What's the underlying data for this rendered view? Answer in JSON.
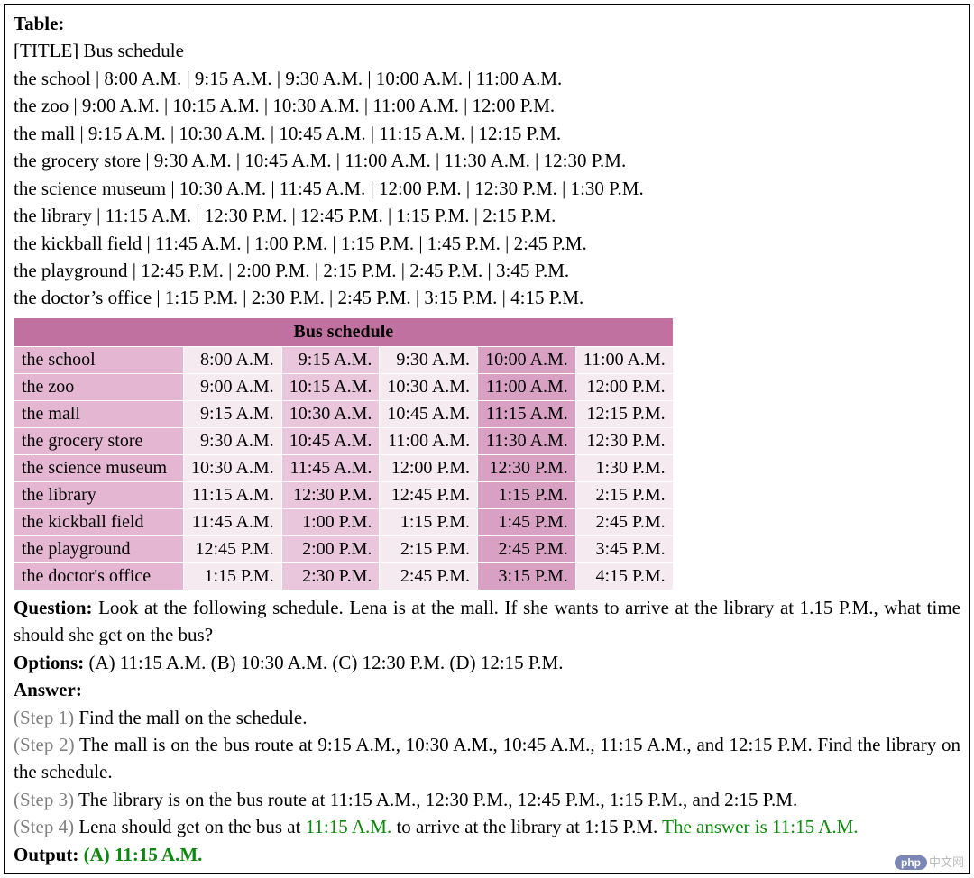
{
  "colors": {
    "header_bg": "#c171a0",
    "loc_bg": "#e5b6d1",
    "cell_light": "#f6eaf1",
    "cell_mid": "#e9c6db",
    "cell_dark": "#d8a1c3",
    "border": "#ffffff",
    "text": "#000000",
    "step_gray": "#808080",
    "green": "#0a8a0a"
  },
  "header": {
    "table_label": "Table:",
    "title_line": "[TITLE] Bus schedule"
  },
  "text_rows": [
    "the school | 8:00 A.M. | 9:15 A.M. | 9:30 A.M. | 10:00 A.M. | 11:00 A.M.",
    "the zoo | 9:00 A.M. | 10:15 A.M. | 10:30 A.M. | 11:00 A.M. | 12:00 P.M.",
    "the mall | 9:15 A.M. | 10:30 A.M. | 10:45 A.M. | 11:15 A.M. | 12:15 P.M.",
    "the grocery store | 9:30 A.M. | 10:45 A.M. | 11:00 A.M. | 11:30 A.M. | 12:30 P.M.",
    "the science museum | 10:30 A.M. | 11:45 A.M. | 12:00 P.M. | 12:30 P.M. | 1:30 P.M.",
    "the library | 11:15 A.M. | 12:30 P.M. | 12:45 P.M. | 1:15 P.M. | 2:15 P.M.",
    "the kickball field | 11:45 A.M. | 1:00 P.M. | 1:15 P.M. | 1:45 P.M. | 2:45 P.M.",
    "the playground | 12:45 P.M. | 2:00 P.M. | 2:15 P.M. | 2:45 P.M. | 3:45 P.M.",
    "the doctor’s office | 1:15 P.M. | 2:30 P.M. | 2:45 P.M. | 3:15 P.M. | 4:15 P.M."
  ],
  "table": {
    "title": "Bus schedule",
    "col_shades": [
      "light",
      "mid",
      "light",
      "dark",
      "light"
    ],
    "rows": [
      {
        "loc": "the school",
        "cells": [
          "8:00 A.M.",
          "9:15 A.M.",
          "9:30 A.M.",
          "10:00 A.M.",
          "11:00 A.M."
        ]
      },
      {
        "loc": "the zoo",
        "cells": [
          "9:00 A.M.",
          "10:15 A.M.",
          "10:30 A.M.",
          "11:00 A.M.",
          "12:00 P.M."
        ]
      },
      {
        "loc": "the mall",
        "cells": [
          "9:15 A.M.",
          "10:30 A.M.",
          "10:45 A.M.",
          "11:15 A.M.",
          "12:15 P.M."
        ]
      },
      {
        "loc": "the grocery store",
        "cells": [
          "9:30 A.M.",
          "10:45 A.M.",
          "11:00 A.M.",
          "11:30 A.M.",
          "12:30 P.M."
        ]
      },
      {
        "loc": "the science museum",
        "cells": [
          "10:30 A.M.",
          "11:45 A.M.",
          "12:00 P.M.",
          "12:30 P.M.",
          "1:30 P.M."
        ]
      },
      {
        "loc": "the library",
        "cells": [
          "11:15 A.M.",
          "12:30 P.M.",
          "12:45 P.M.",
          "1:15 P.M.",
          "2:15 P.M."
        ]
      },
      {
        "loc": "the kickball field",
        "cells": [
          "11:45 A.M.",
          "1:00 P.M.",
          "1:15 P.M.",
          "1:45 P.M.",
          "2:45 P.M."
        ]
      },
      {
        "loc": "the playground",
        "cells": [
          "12:45 P.M.",
          "2:00 P.M.",
          "2:15 P.M.",
          "2:45 P.M.",
          "3:45 P.M."
        ]
      },
      {
        "loc": "the doctor's office",
        "cells": [
          "1:15 P.M.",
          "2:30 P.M.",
          "2:45 P.M.",
          "3:15 P.M.",
          "4:15 P.M."
        ]
      }
    ]
  },
  "qa": {
    "question_label": "Question:",
    "question_text": " Look at the following schedule. Lena is at the mall. If she wants to arrive at the library at 1.15 P.M., what time should she get on the bus?",
    "options_label": "Options:",
    "options_text": " (A) 11:15 A.M. (B) 10:30 A.M. (C) 12:30 P.M. (D) 12:15 P.M.",
    "answer_label": "Answer:",
    "steps": [
      {
        "label": "(Step 1)",
        "pre": " Find the mall on the schedule."
      },
      {
        "label": "(Step 2)",
        "pre": " The mall is on the bus route at 9:15 A.M., 10:30 A.M., 10:45 A.M., 11:15 A.M., and 12:15 P.M. Find the library on the schedule."
      },
      {
        "label": "(Step 3)",
        "pre": " The library is on the bus route at 11:15 A.M., 12:30 P.M., 12:45 P.M., 1:15 P.M., and 2:15 P.M."
      }
    ],
    "step4": {
      "label": "(Step 4)",
      "p1": " Lena should get on the bus at ",
      "g1": "11:15 A.M.",
      "p2": " to arrive at the library at 1:15 P.M. ",
      "g2": "The answer is 11:15 A.M."
    },
    "output_label": "Output:",
    "output_text": " (A) 11:15 A.M."
  },
  "watermark": {
    "badge": "php",
    "text": "中文网"
  }
}
